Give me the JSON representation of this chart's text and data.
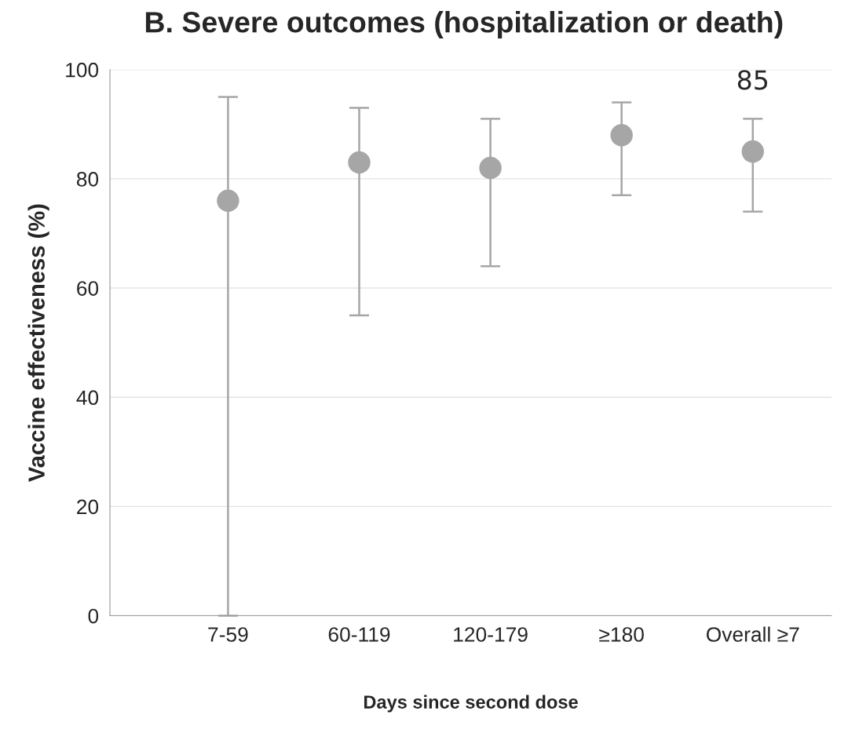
{
  "chart_data": {
    "type": "scatter",
    "title": "B. Severe outcomes (hospitalization or death)",
    "xlabel": "Days since second dose",
    "ylabel": "Vaccine effectiveness (%)",
    "categories": [
      "7-59",
      "60-119",
      "120-179",
      "≥180",
      "Overall ≥7"
    ],
    "values": [
      76,
      83,
      82,
      88,
      85
    ],
    "errors": [
      [
        0,
        95
      ],
      [
        55,
        93
      ],
      [
        64,
        91
      ],
      [
        77,
        94
      ],
      [
        74,
        91
      ]
    ],
    "value_labels": [
      null,
      null,
      null,
      null,
      "85"
    ],
    "color": "#a6a6a6",
    "marker": "circle",
    "ylim": [
      0,
      100
    ],
    "yticks": [
      0,
      20,
      40,
      60,
      80,
      100
    ],
    "grid": "y"
  }
}
